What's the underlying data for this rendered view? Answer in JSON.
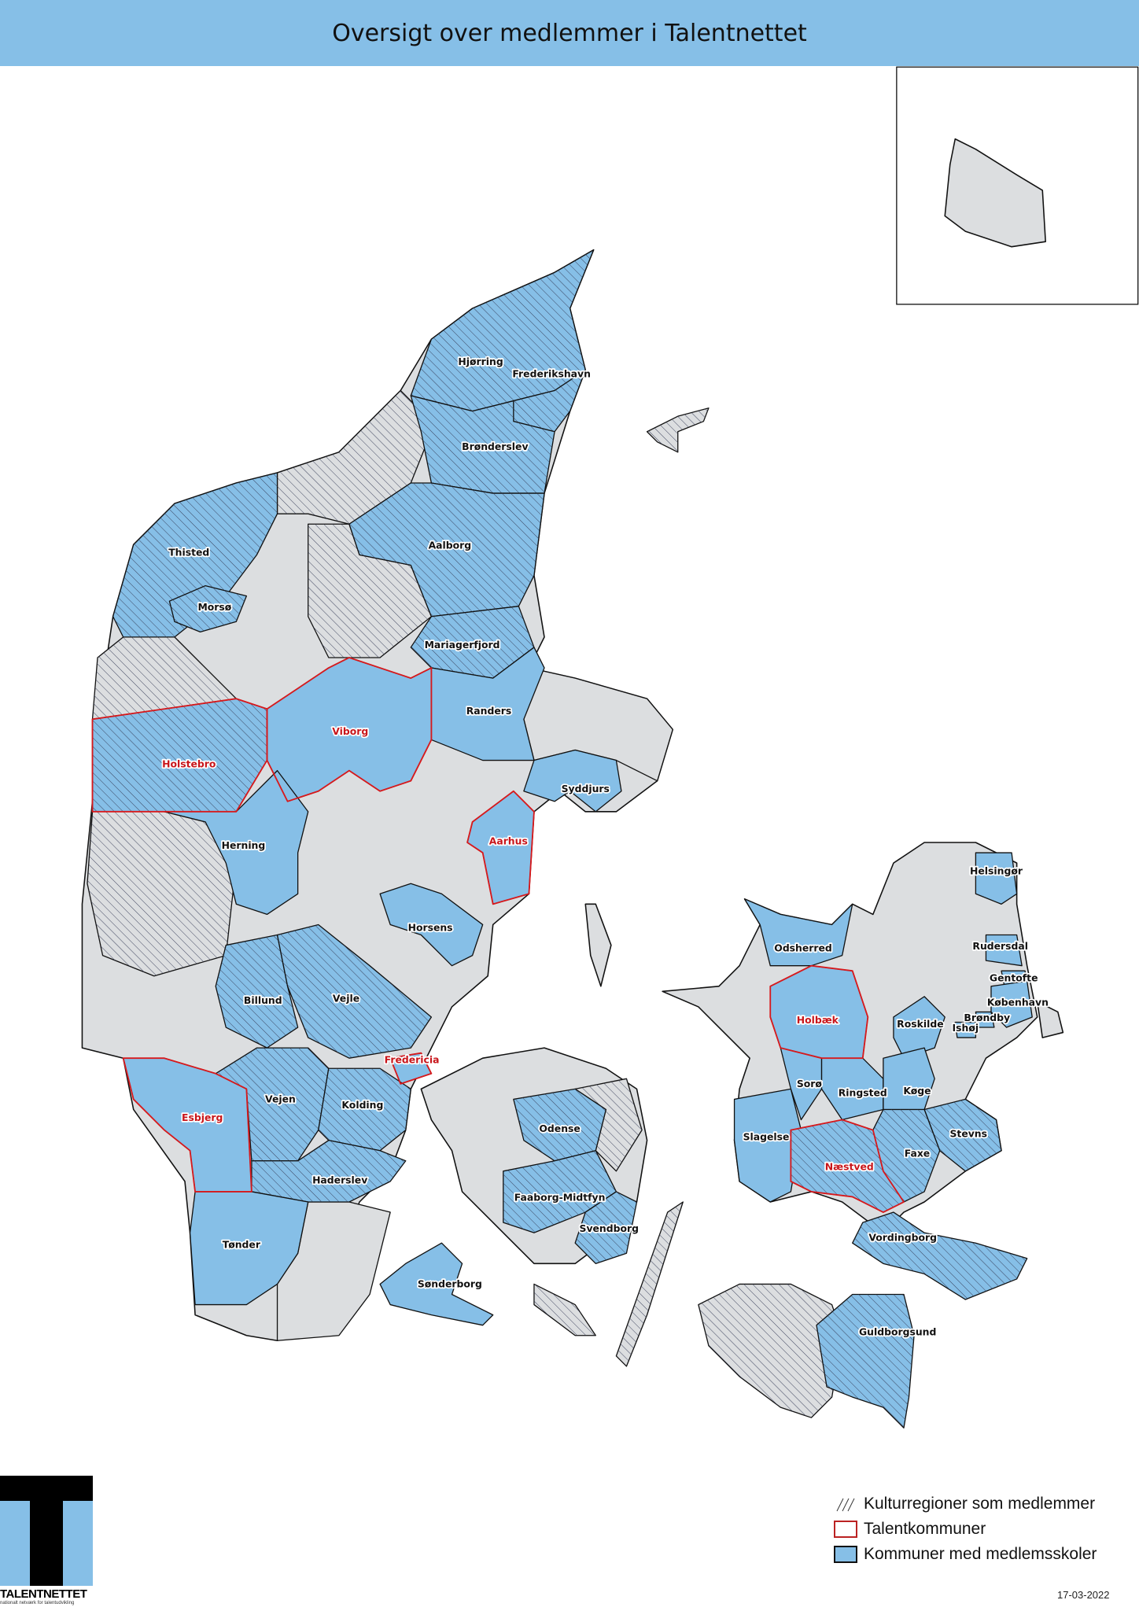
{
  "title": "Oversigt over medlemmer i Talentnettet",
  "colors": {
    "member_fill": "#86bfe7",
    "non_member_fill": "#dcdee0",
    "talent_outline": "#d7191c",
    "title_bar": "#86bfe7",
    "border": "#111111"
  },
  "legend": [
    {
      "label": "Kulturregioner som medlemmer",
      "symbol": "hatch"
    },
    {
      "label": "Talentkommuner",
      "symbol": "red-outline"
    },
    {
      "label": "Kommuner med medlemsskoler",
      "symbol": "blue-fill"
    }
  ],
  "logo": {
    "name": "TALENTNETTET",
    "tagline": "nationalt netværk for talentudvikling"
  },
  "date": "17-03-2022",
  "municipalities": [
    {
      "label": "Hjørring",
      "member": true,
      "talent": false,
      "kultur": true
    },
    {
      "label": "Frederikshavn",
      "member": true,
      "talent": false,
      "kultur": true
    },
    {
      "label": "Brønderslev",
      "member": true,
      "talent": false,
      "kultur": true
    },
    {
      "label": "Thisted",
      "member": true,
      "talent": false,
      "kultur": true
    },
    {
      "label": "Aalborg",
      "member": true,
      "talent": false,
      "kultur": true
    },
    {
      "label": "Morsø",
      "member": true,
      "talent": false,
      "kultur": true
    },
    {
      "label": "Mariagerfjord",
      "member": true,
      "talent": false,
      "kultur": true
    },
    {
      "label": "Randers",
      "member": true,
      "talent": false,
      "kultur": false
    },
    {
      "label": "Viborg",
      "member": true,
      "talent": true,
      "kultur": false
    },
    {
      "label": "Holstebro",
      "member": true,
      "talent": true,
      "kultur": true
    },
    {
      "label": "Syddjurs",
      "member": true,
      "talent": false,
      "kultur": false
    },
    {
      "label": "Aarhus",
      "member": true,
      "talent": true,
      "kultur": false
    },
    {
      "label": "Herning",
      "member": true,
      "talent": false,
      "kultur": false
    },
    {
      "label": "Horsens",
      "member": true,
      "talent": false,
      "kultur": false
    },
    {
      "label": "Odsherred",
      "member": true,
      "talent": false,
      "kultur": false
    },
    {
      "label": "Helsingør",
      "member": true,
      "talent": false,
      "kultur": false
    },
    {
      "label": "Rudersdal",
      "member": true,
      "talent": false,
      "kultur": false
    },
    {
      "label": "Gentofte",
      "member": true,
      "talent": false,
      "kultur": false
    },
    {
      "label": "København",
      "member": true,
      "talent": false,
      "kultur": false
    },
    {
      "label": "Brøndby",
      "member": true,
      "talent": false,
      "kultur": false
    },
    {
      "label": "Ishøj",
      "member": true,
      "talent": false,
      "kultur": false
    },
    {
      "label": "Roskilde",
      "member": true,
      "talent": false,
      "kultur": false
    },
    {
      "label": "Holbæk",
      "member": true,
      "talent": true,
      "kultur": false
    },
    {
      "label": "Billund",
      "member": true,
      "talent": false,
      "kultur": true
    },
    {
      "label": "Vejle",
      "member": true,
      "talent": false,
      "kultur": true
    },
    {
      "label": "Fredericia",
      "member": true,
      "talent": true,
      "kultur": false
    },
    {
      "label": "Vejen",
      "member": true,
      "talent": false,
      "kultur": true
    },
    {
      "label": "Kolding",
      "member": true,
      "talent": false,
      "kultur": true
    },
    {
      "label": "Esbjerg",
      "member": true,
      "talent": true,
      "kultur": false
    },
    {
      "label": "Sorø",
      "member": true,
      "talent": false,
      "kultur": false
    },
    {
      "label": "Ringsted",
      "member": true,
      "talent": false,
      "kultur": false
    },
    {
      "label": "Køge",
      "member": true,
      "talent": false,
      "kultur": false
    },
    {
      "label": "Odense",
      "member": true,
      "talent": false,
      "kultur": true
    },
    {
      "label": "Slagelse",
      "member": true,
      "talent": false,
      "kultur": false
    },
    {
      "label": "Stevns",
      "member": true,
      "talent": false,
      "kultur": true
    },
    {
      "label": "Næstved",
      "member": true,
      "talent": true,
      "kultur": true
    },
    {
      "label": "Faxe",
      "member": true,
      "talent": false,
      "kultur": true
    },
    {
      "label": "Haderslev",
      "member": true,
      "talent": false,
      "kultur": true
    },
    {
      "label": "Faaborg-Midtfyn",
      "member": true,
      "talent": false,
      "kultur": true
    },
    {
      "label": "Svendborg",
      "member": true,
      "talent": false,
      "kultur": true
    },
    {
      "label": "Vordingborg",
      "member": true,
      "talent": false,
      "kultur": true
    },
    {
      "label": "Tønder",
      "member": true,
      "talent": false,
      "kultur": false
    },
    {
      "label": "Sønderborg",
      "member": true,
      "talent": false,
      "kultur": false
    },
    {
      "label": "Guldborgsund",
      "member": true,
      "talent": false,
      "kultur": true
    }
  ]
}
